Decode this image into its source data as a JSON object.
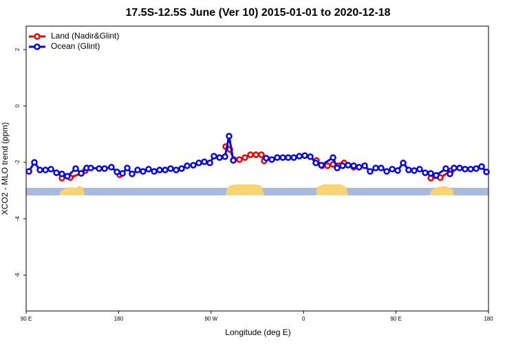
{
  "chart_data": {
    "type": "line",
    "title": "17.5S-12.5S June (Ver 10)   2015-01-01 to 2020-12-18",
    "x_label": "Longitude (deg E)",
    "y_label": "XCO2 - MLO trend (ppm)",
    "xlim": [
      90,
      540
    ],
    "ylim": [
      -7.27,
      2.83
    ],
    "xticks": [
      {
        "value": 90,
        "label": "90 E"
      },
      180,
      {
        "value": 270,
        "label": "90 W"
      },
      {
        "value": 360,
        "label": "0"
      },
      {
        "value": 450,
        "label": "90 E"
      },
      {
        "value": 540,
        "label": "180"
      }
    ],
    "yticks": [
      -6,
      -4,
      -2,
      0,
      2
    ],
    "legend": "top-left",
    "series": [
      {
        "name": "Land (Nadir&Glint)",
        "color": "#ee0000",
        "x": [
          124.8,
          132.9,
          143.6,
          147.6,
          181.1,
          284.2,
          288.2,
          292.2,
          297.6,
          302.9,
          308.3,
          313.7,
          319,
          321.7,
          372.6,
          377.9,
          383.3,
          388.7,
          399.4,
          408.8,
          483.8,
          493.1,
          503.9,
          506.5
        ],
        "values": [
          -2.56,
          -2.54,
          -2.39,
          -2.29,
          -2.44,
          -1.44,
          -1.54,
          -1.9,
          -1.9,
          -1.83,
          -1.73,
          -1.73,
          -1.73,
          -1.95,
          -1.93,
          -2.12,
          -2.12,
          -2.07,
          -2.02,
          -2.17,
          -2.56,
          -2.54,
          -2.29,
          -2.2
        ]
      },
      {
        "name": "Ocean (Glint)",
        "color": "#0000ee",
        "x": [
          92.7,
          98,
          103.4,
          108.8,
          114.1,
          119.5,
          124.8,
          130.2,
          138.2,
          143.6,
          148.9,
          152.9,
          161,
          166.3,
          173,
          178.4,
          183.8,
          188.4,
          193.1,
          198.5,
          203.8,
          209.2,
          214.6,
          219.9,
          225.3,
          230.6,
          236,
          241.3,
          246.7,
          252.7,
          258.1,
          263.4,
          268.8,
          272.8,
          278.2,
          283.5,
          287.5,
          291.6,
          323.7,
          329.1,
          334.4,
          339.8,
          345.1,
          350.5,
          355.9,
          361.2,
          366.6,
          371.9,
          377.3,
          388.7,
          392.7,
          398,
          403.4,
          408.8,
          414.1,
          419.5,
          424.8,
          430.2,
          435.5,
          440.9,
          446.3,
          451.6,
          457,
          462.3,
          467.7,
          473,
          478.4,
          483.8,
          489.1,
          498.5,
          502.5,
          506.5,
          511.9,
          517.2,
          522.6,
          528,
          533.3,
          538
        ],
        "values": [
          -2.32,
          -2.0,
          -2.27,
          -2.27,
          -2.24,
          -2.37,
          -2.41,
          -2.49,
          -2.22,
          -2.39,
          -2.2,
          -2.2,
          -2.22,
          -2.22,
          -2.17,
          -2.34,
          -2.39,
          -2.2,
          -2.41,
          -2.27,
          -2.32,
          -2.24,
          -2.32,
          -2.27,
          -2.27,
          -2.22,
          -2.27,
          -2.22,
          -2.12,
          -2.1,
          -2.02,
          -1.98,
          -2.02,
          -1.78,
          -1.83,
          -1.8,
          -1.07,
          -1.93,
          -1.85,
          -1.9,
          -1.83,
          -1.83,
          -1.83,
          -1.83,
          -1.78,
          -1.76,
          -1.8,
          -2.02,
          -2.1,
          -1.83,
          -2.2,
          -2.12,
          -2.1,
          -2.12,
          -2.17,
          -2.12,
          -2.32,
          -2.2,
          -2.2,
          -2.32,
          -2.24,
          -2.29,
          -2.02,
          -2.27,
          -2.29,
          -2.24,
          -2.37,
          -2.39,
          -2.46,
          -2.22,
          -2.41,
          -2.2,
          -2.2,
          -2.24,
          -2.24,
          -2.22,
          -2.15,
          -2.34
        ]
      }
    ]
  }
}
